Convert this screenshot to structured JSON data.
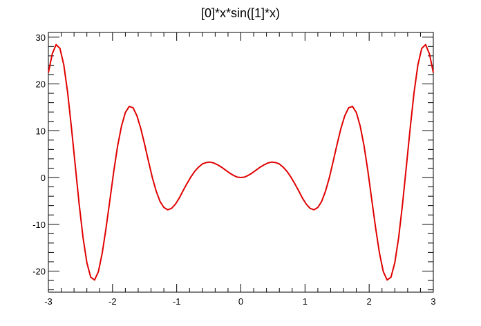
{
  "chart_data": {
    "type": "line",
    "title": "[0]*x*sin([1]*x)",
    "xlabel": "",
    "ylabel": "",
    "xlim": [
      -3,
      3
    ],
    "ylim": [
      -24.5,
      31
    ],
    "x_ticks": [
      -3,
      -2,
      -1,
      0,
      1,
      2,
      3
    ],
    "x_tick_labels": [
      "-3",
      "-2",
      "-1",
      "0",
      "1",
      "2",
      "3"
    ],
    "y_ticks": [
      -20,
      -10,
      0,
      10,
      20,
      30
    ],
    "y_tick_labels": [
      "-20",
      "-10",
      "0",
      "10",
      "20",
      "30"
    ],
    "grid": false,
    "series": [
      {
        "color": "#e00000",
        "x": [
          -3.0,
          -2.94,
          -2.88,
          -2.82,
          -2.76,
          -2.7,
          -2.64,
          -2.58,
          -2.52,
          -2.46,
          -2.4,
          -2.34,
          -2.28,
          -2.22,
          -2.16,
          -2.1,
          -2.04,
          -1.98,
          -1.92,
          -1.86,
          -1.8,
          -1.74,
          -1.68,
          -1.62,
          -1.56,
          -1.5,
          -1.44,
          -1.38,
          -1.32,
          -1.26,
          -1.2,
          -1.14,
          -1.08,
          -1.02,
          -0.96,
          -0.9,
          -0.84,
          -0.78,
          -0.72,
          -0.66,
          -0.6,
          -0.54,
          -0.48,
          -0.42,
          -0.36,
          -0.3,
          -0.24,
          -0.18,
          -0.12,
          -0.06,
          0.0,
          0.06,
          0.12,
          0.18,
          0.24,
          0.3,
          0.36,
          0.42,
          0.48,
          0.54,
          0.6,
          0.66,
          0.72,
          0.78,
          0.84,
          0.9,
          0.96,
          1.02,
          1.08,
          1.14,
          1.2,
          1.26,
          1.32,
          1.38,
          1.44,
          1.5,
          1.56,
          1.62,
          1.68,
          1.74,
          1.8,
          1.86,
          1.92,
          1.98,
          2.04,
          2.1,
          2.16,
          2.22,
          2.28,
          2.34,
          2.4,
          2.46,
          2.52,
          2.58,
          2.64,
          2.7,
          2.76,
          2.82,
          2.88,
          2.94,
          3.0
        ],
        "y": [
          22.4,
          26.4,
          28.4,
          27.6,
          24.1,
          18.2,
          10.6,
          2.4,
          -5.7,
          -12.8,
          -18.2,
          -21.3,
          -21.9,
          -20.1,
          -16.1,
          -10.7,
          -4.7,
          1.4,
          6.8,
          11.0,
          13.9,
          15.2,
          14.9,
          13.2,
          10.5,
          7.1,
          3.5,
          0.0,
          -2.9,
          -5.1,
          -6.4,
          -6.9,
          -6.6,
          -5.7,
          -4.4,
          -2.8,
          -1.3,
          0.1,
          1.3,
          2.2,
          2.9,
          3.2,
          3.3,
          3.1,
          2.7,
          2.2,
          1.6,
          1.0,
          0.5,
          0.1,
          0.0,
          0.1,
          0.5,
          1.0,
          1.6,
          2.2,
          2.7,
          3.1,
          3.3,
          3.2,
          2.9,
          2.2,
          1.3,
          0.1,
          -1.3,
          -2.8,
          -4.4,
          -5.7,
          -6.6,
          -6.9,
          -6.4,
          -5.1,
          -2.9,
          0.0,
          3.5,
          7.1,
          10.5,
          13.2,
          14.9,
          15.2,
          13.9,
          11.0,
          6.8,
          1.4,
          -4.7,
          -10.7,
          -16.1,
          -20.1,
          -21.9,
          -21.3,
          -18.2,
          -12.8,
          -5.7,
          2.4,
          10.6,
          18.2,
          24.1,
          27.6,
          28.4,
          26.4,
          22.4
        ]
      }
    ]
  }
}
